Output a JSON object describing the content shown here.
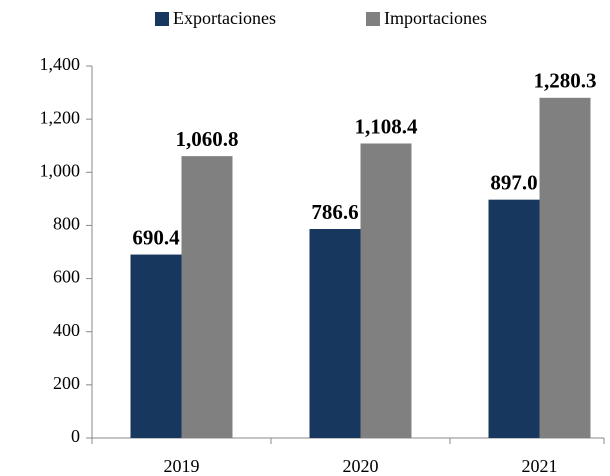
{
  "chart_data": {
    "type": "bar",
    "categories": [
      "2019",
      "2020",
      "2021"
    ],
    "series": [
      {
        "name": "Exportaciones",
        "color": "#17375e",
        "values": [
          690.4,
          786.6,
          897.0
        ],
        "value_labels": [
          "690.4",
          "786.6",
          "897.0"
        ]
      },
      {
        "name": "Importaciones",
        "color": "#808080",
        "values": [
          1060.8,
          1108.4,
          1280.3
        ],
        "value_labels": [
          "1,060.8",
          "1,108.4",
          "1,280.3"
        ]
      }
    ],
    "ylim": [
      0,
      1400
    ],
    "yticks": [
      0,
      200,
      400,
      600,
      800,
      {
        "value": 1000,
        "label": "1,000"
      },
      {
        "value": 1200,
        "label": "1,200"
      },
      {
        "value": 1400,
        "label": "1,400"
      }
    ],
    "legend": "top"
  }
}
